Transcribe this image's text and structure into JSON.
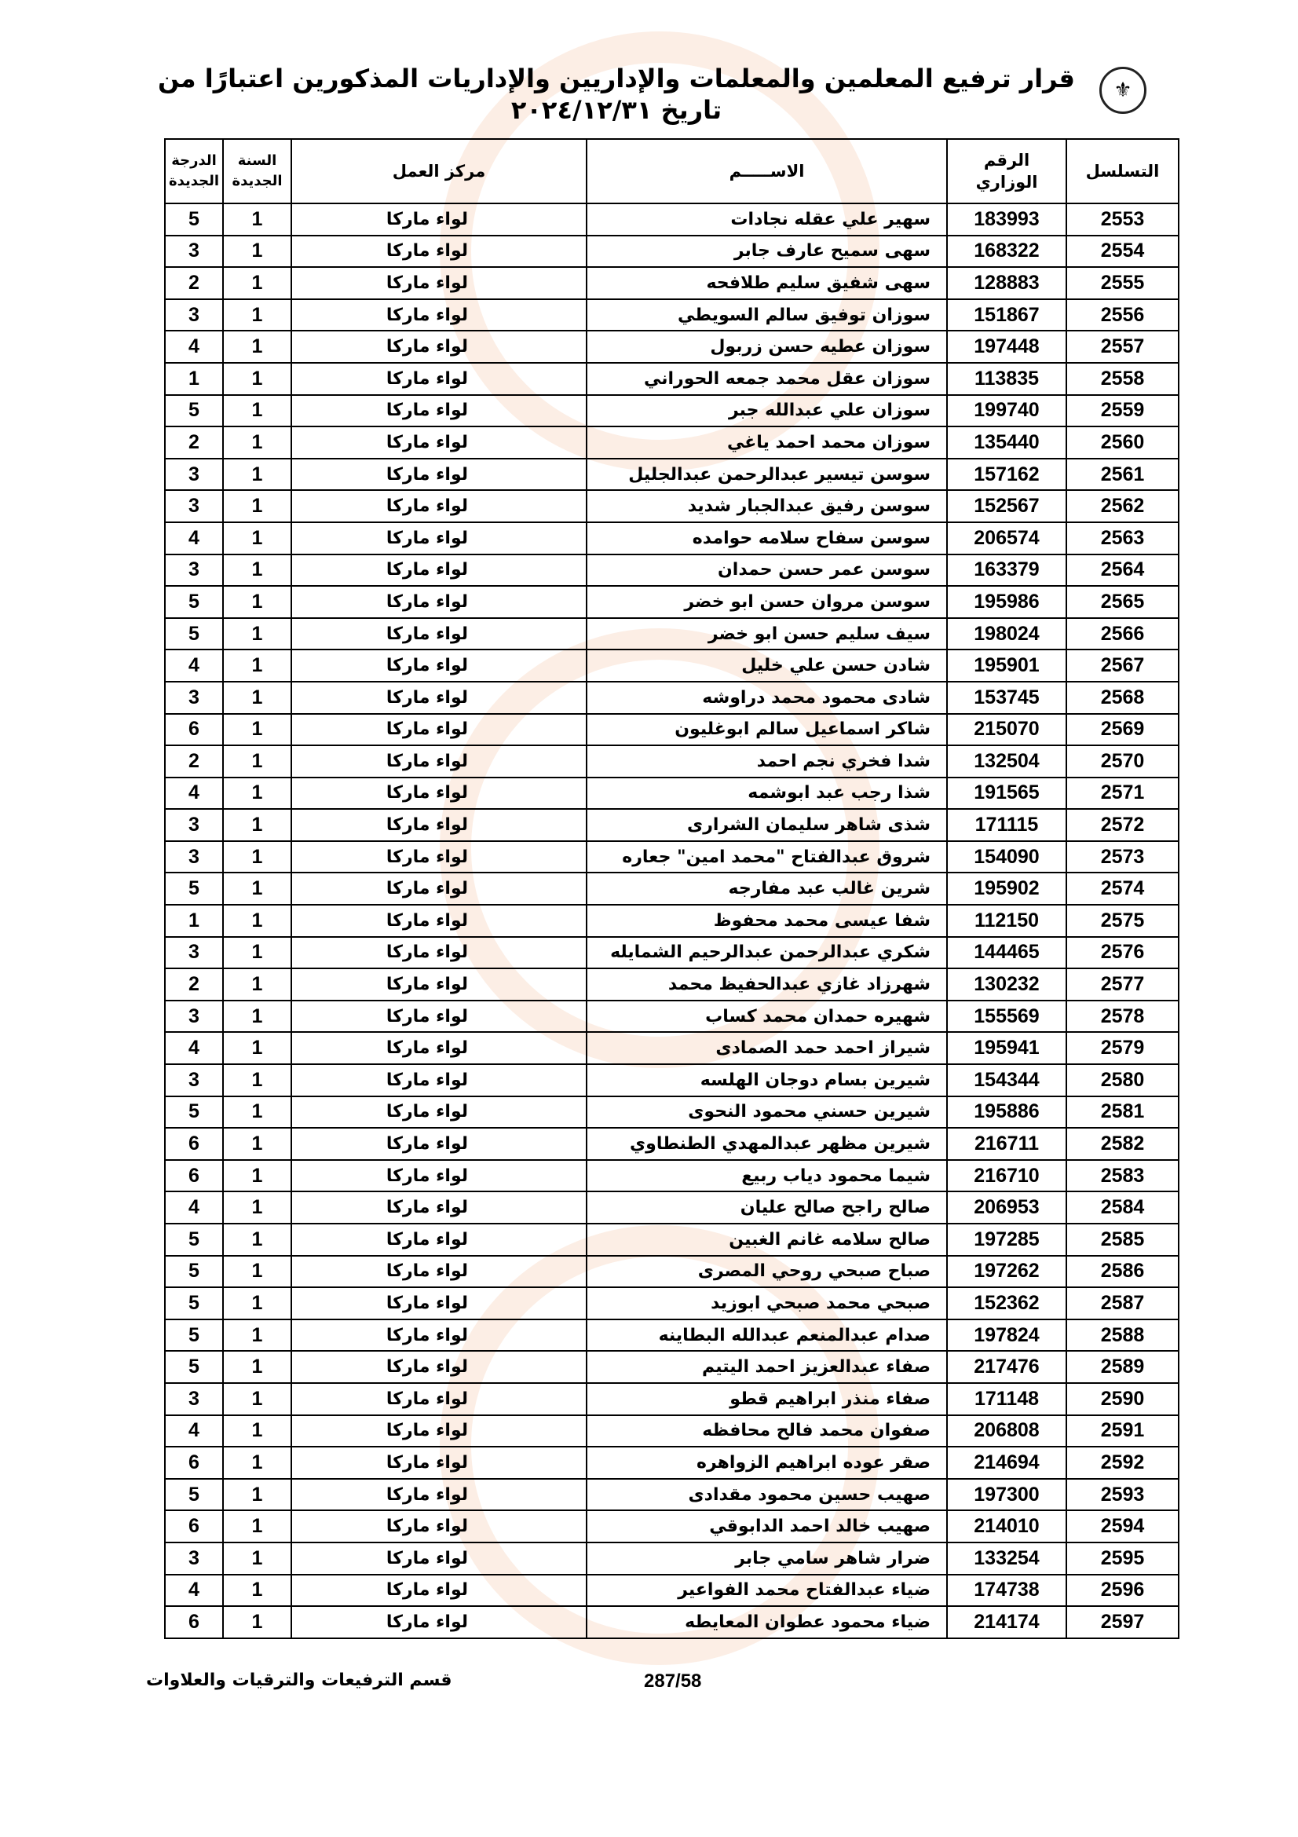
{
  "document": {
    "title": "قرار ترفيع المعلمين والمعلمات والإداريين والإداريات المذكورين اعتبارًا من تاريخ ٢٠٢٤/١٢/٣١",
    "logo": "جدول شعار وزارة التربية والتعليم",
    "watermark": "مدار الساعة الإخبارية"
  },
  "table": {
    "headers": {
      "serial": "التسلسل",
      "ministry_number": "الرقم الوزاري",
      "name": "الاســـــم",
      "work_center": "مركز العمل",
      "new_year": "السنة الجديدة",
      "new_grade": "الدرجة الجديدة"
    },
    "rows": [
      [
        "2553",
        "183993",
        "سهير علي عقله نجادات",
        "لواء ماركا",
        "1",
        "5"
      ],
      [
        "2554",
        "168322",
        "سهى سميح عارف جابر",
        "لواء ماركا",
        "1",
        "3"
      ],
      [
        "2555",
        "128883",
        "سهى شفيق سليم طلافحه",
        "لواء ماركا",
        "1",
        "2"
      ],
      [
        "2556",
        "151867",
        "سوزان توفيق سالم السويطي",
        "لواء ماركا",
        "1",
        "3"
      ],
      [
        "2557",
        "197448",
        "سوزان عطيه حسن زربول",
        "لواء ماركا",
        "1",
        "4"
      ],
      [
        "2558",
        "113835",
        "سوزان عقل محمد جمعه الحوراني",
        "لواء ماركا",
        "1",
        "1"
      ],
      [
        "2559",
        "199740",
        "سوزان علي عبدالله جبر",
        "لواء ماركا",
        "1",
        "5"
      ],
      [
        "2560",
        "135440",
        "سوزان محمد احمد ياغي",
        "لواء ماركا",
        "1",
        "2"
      ],
      [
        "2561",
        "157162",
        "سوسن تيسير عبدالرحمن عبدالجليل",
        "لواء ماركا",
        "1",
        "3"
      ],
      [
        "2562",
        "152567",
        "سوسن رفيق عبدالجبار شديد",
        "لواء ماركا",
        "1",
        "3"
      ],
      [
        "2563",
        "206574",
        "سوسن سفاح سلامه حوامده",
        "لواء ماركا",
        "1",
        "4"
      ],
      [
        "2564",
        "163379",
        "سوسن عمر حسن حمدان",
        "لواء ماركا",
        "1",
        "3"
      ],
      [
        "2565",
        "195986",
        "سوسن مروان حسن ابو خضر",
        "لواء ماركا",
        "1",
        "5"
      ],
      [
        "2566",
        "198024",
        "سيف سليم حسن ابو خضر",
        "لواء ماركا",
        "1",
        "5"
      ],
      [
        "2567",
        "195901",
        "شادن حسن علي خليل",
        "لواء ماركا",
        "1",
        "4"
      ],
      [
        "2568",
        "153745",
        "شادى محمود محمد دراوشه",
        "لواء ماركا",
        "1",
        "3"
      ],
      [
        "2569",
        "215070",
        "شاكر اسماعيل سالم ابوغليون",
        "لواء ماركا",
        "1",
        "6"
      ],
      [
        "2570",
        "132504",
        "شدا فخري نجم احمد",
        "لواء ماركا",
        "1",
        "2"
      ],
      [
        "2571",
        "191565",
        "شذا رجب عبد ابوشمه",
        "لواء ماركا",
        "1",
        "4"
      ],
      [
        "2572",
        "171115",
        "شذى شاهر سليمان الشرارى",
        "لواء ماركا",
        "1",
        "3"
      ],
      [
        "2573",
        "154090",
        "شروق عبدالفتاح \"محمد امين\" جعاره",
        "لواء ماركا",
        "1",
        "3"
      ],
      [
        "2574",
        "195902",
        "شرين غالب عبد مفارجه",
        "لواء ماركا",
        "1",
        "5"
      ],
      [
        "2575",
        "112150",
        "شفا عيسى محمد محفوظ",
        "لواء ماركا",
        "1",
        "1"
      ],
      [
        "2576",
        "144465",
        "شكري عبدالرحمن عبدالرحيم الشمايله",
        "لواء ماركا",
        "1",
        "3"
      ],
      [
        "2577",
        "130232",
        "شهرزاد غازي عبدالحفيظ محمد",
        "لواء ماركا",
        "1",
        "2"
      ],
      [
        "2578",
        "155569",
        "شهيره حمدان محمد كساب",
        "لواء ماركا",
        "1",
        "3"
      ],
      [
        "2579",
        "195941",
        "شيراز احمد حمد الصمادى",
        "لواء ماركا",
        "1",
        "4"
      ],
      [
        "2580",
        "154344",
        "شيرين بسام دوجان الهلسه",
        "لواء ماركا",
        "1",
        "3"
      ],
      [
        "2581",
        "195886",
        "شيرين حسني محمود النحوى",
        "لواء ماركا",
        "1",
        "5"
      ],
      [
        "2582",
        "216711",
        "شيرين مظهر عبدالمهدي الطنطاوي",
        "لواء ماركا",
        "1",
        "6"
      ],
      [
        "2583",
        "216710",
        "شيما محمود دياب ربيع",
        "لواء ماركا",
        "1",
        "6"
      ],
      [
        "2584",
        "206953",
        "صالح راجح صالح عليان",
        "لواء ماركا",
        "1",
        "4"
      ],
      [
        "2585",
        "197285",
        "صالح سلامه غانم الغبين",
        "لواء ماركا",
        "1",
        "5"
      ],
      [
        "2586",
        "197262",
        "صباح صبحي روحي المصرى",
        "لواء ماركا",
        "1",
        "5"
      ],
      [
        "2587",
        "152362",
        "صبحي محمد صبحي ابوزيد",
        "لواء ماركا",
        "1",
        "5"
      ],
      [
        "2588",
        "197824",
        "صدام عبدالمنعم عبدالله البطاينه",
        "لواء ماركا",
        "1",
        "5"
      ],
      [
        "2589",
        "217476",
        "صفاء عبدالعزيز احمد اليتيم",
        "لواء ماركا",
        "1",
        "5"
      ],
      [
        "2590",
        "171148",
        "صفاء منذر ابراهيم قطو",
        "لواء ماركا",
        "1",
        "3"
      ],
      [
        "2591",
        "206808",
        "صفوان محمد فالح محافظه",
        "لواء ماركا",
        "1",
        "4"
      ],
      [
        "2592",
        "214694",
        "صقر عوده ابراهيم الزواهره",
        "لواء ماركا",
        "1",
        "6"
      ],
      [
        "2593",
        "197300",
        "صهيب حسين محمود مقدادى",
        "لواء ماركا",
        "1",
        "5"
      ],
      [
        "2594",
        "214010",
        "صهيب خالد احمد الدابوقي",
        "لواء ماركا",
        "1",
        "6"
      ],
      [
        "2595",
        "133254",
        "ضرار شاهر سامي جابر",
        "لواء ماركا",
        "1",
        "3"
      ],
      [
        "2596",
        "174738",
        "ضياء عبدالفتاح محمد الفواعير",
        "لواء ماركا",
        "1",
        "4"
      ],
      [
        "2597",
        "214174",
        "ضياء محمود عطوان المعايطه",
        "لواء ماركا",
        "1",
        "6"
      ]
    ]
  },
  "footer": {
    "page": "287/58",
    "department": "قسم الترفيعات والترقيات والعلاوات"
  }
}
